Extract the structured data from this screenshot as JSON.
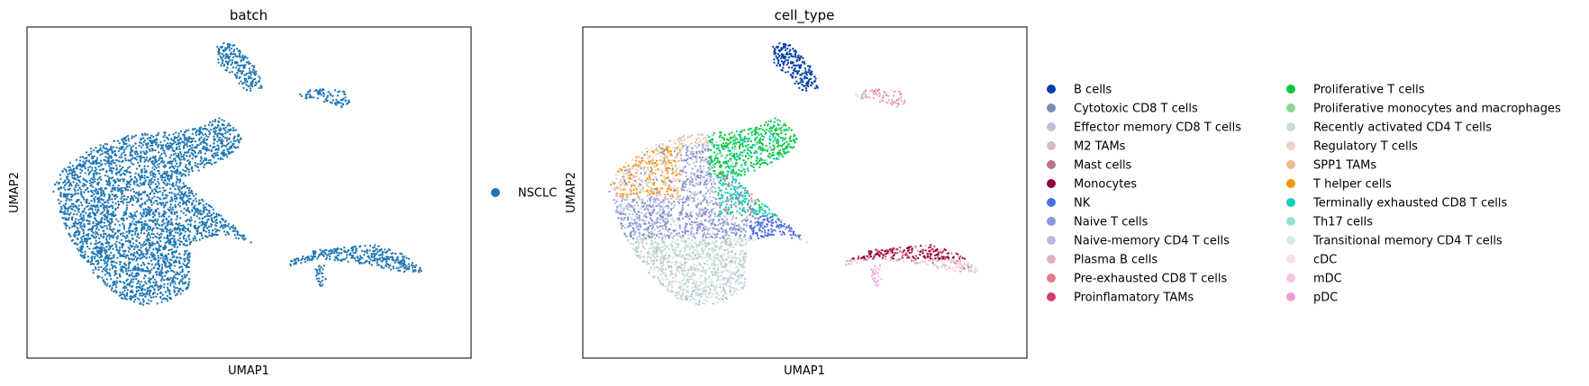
{
  "chart_data": [
    {
      "type": "scatter",
      "title": "batch",
      "xlabel": "UMAP1",
      "ylabel": "UMAP2",
      "grid": false,
      "legend_placement": "right",
      "series": [
        {
          "name": "NSCLC",
          "color": "#1f77b4"
        }
      ]
    },
    {
      "type": "scatter",
      "title": "cell_type",
      "xlabel": "UMAP1",
      "ylabel": "UMAP2",
      "grid": false,
      "legend_placement": "right",
      "series": [
        {
          "name": "B cells",
          "color": "#023fa5"
        },
        {
          "name": "Cytotoxic CD8 T cells",
          "color": "#7d87b9"
        },
        {
          "name": "Effector memory CD8 T cells",
          "color": "#bec1d4"
        },
        {
          "name": "M2 TAMs",
          "color": "#d6bcc0"
        },
        {
          "name": "Mast cells",
          "color": "#bb7784"
        },
        {
          "name": "Monocytes",
          "color": "#8e063b"
        },
        {
          "name": "NK",
          "color": "#4a6fe3"
        },
        {
          "name": "Naive T cells",
          "color": "#8595e1"
        },
        {
          "name": "Naive-memory CD4 T cells",
          "color": "#b5bbe3"
        },
        {
          "name": "Plasma B cells",
          "color": "#e6afb9"
        },
        {
          "name": "Pre-exhausted CD8 T cells",
          "color": "#e07b91"
        },
        {
          "name": "Proinflamatory TAMs",
          "color": "#d33f6a"
        },
        {
          "name": "Proliferative T cells",
          "color": "#11c638"
        },
        {
          "name": "Proliferative monocytes and macrophages",
          "color": "#8dd593"
        },
        {
          "name": "Recently activated CD4 T cells",
          "color": "#c6dec7"
        },
        {
          "name": "Regulatory T cells",
          "color": "#ead3c6"
        },
        {
          "name": "SPP1 TAMs",
          "color": "#f0b98d"
        },
        {
          "name": "T helper cells",
          "color": "#ef9708"
        },
        {
          "name": "Terminally exhausted CD8 T cells",
          "color": "#0fcfc0"
        },
        {
          "name": "Th17 cells",
          "color": "#9cded6"
        },
        {
          "name": "Transitional memory CD4 T cells",
          "color": "#d5eae7"
        },
        {
          "name": "cDC",
          "color": "#f3e1eb"
        },
        {
          "name": "mDC",
          "color": "#f6c4e1"
        },
        {
          "name": "pDC",
          "color": "#f79cd4"
        }
      ]
    }
  ]
}
